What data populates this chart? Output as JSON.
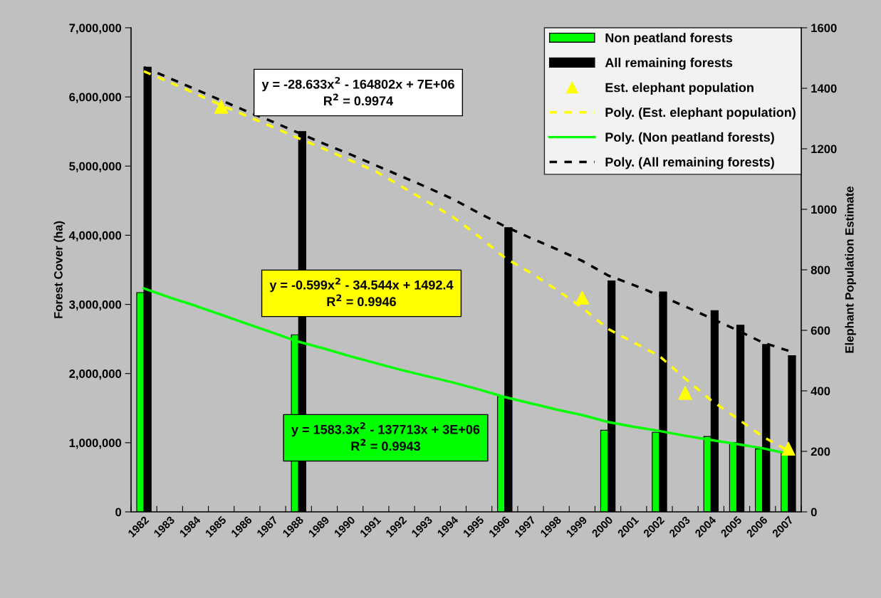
{
  "chart_data": {
    "type": "bar",
    "categories": [
      "1982",
      "1983",
      "1984",
      "1985",
      "1986",
      "1987",
      "1988",
      "1989",
      "1990",
      "1991",
      "1992",
      "1993",
      "1994",
      "1995",
      "1996",
      "1997",
      "1998",
      "1999",
      "2000",
      "2001",
      "2002",
      "2003",
      "2004",
      "2005",
      "2006",
      "2007"
    ],
    "ylabel": "Forest Cover (ha)",
    "y2label": "Elephant Population Estimate",
    "series": [
      {
        "name": "Non peatland forests",
        "color": "#00ff00",
        "values": [
          3170000,
          null,
          null,
          null,
          null,
          null,
          2560000,
          null,
          null,
          null,
          null,
          null,
          null,
          null,
          1670000,
          null,
          null,
          null,
          1180000,
          null,
          1150000,
          null,
          1090000,
          1000000,
          910000,
          840000
        ]
      },
      {
        "name": "All remaining forests",
        "color": "#000000",
        "values": [
          6430000,
          null,
          null,
          null,
          null,
          null,
          5500000,
          null,
          null,
          null,
          null,
          null,
          null,
          null,
          4110000,
          null,
          null,
          null,
          3340000,
          null,
          3180000,
          null,
          2910000,
          2700000,
          2420000,
          2260000
        ]
      },
      {
        "name": "Est. elephant population",
        "type": "scatter",
        "axis": "y2",
        "color": "#ffff00",
        "marker": "triangle",
        "values": [
          null,
          null,
          null,
          1339,
          null,
          null,
          null,
          null,
          null,
          null,
          null,
          null,
          null,
          null,
          null,
          null,
          null,
          708,
          null,
          null,
          null,
          393,
          null,
          null,
          null,
          209
        ]
      },
      {
        "name": "Poly. (Est. elephant population)",
        "type": "line",
        "axis": "y2",
        "color": "#ffff00",
        "line_style": "dashed",
        "values": [
          1456,
          1420,
          1382,
          1344,
          1308,
          1272,
          1235,
          1199,
          1162,
          1125,
          1075,
          1025,
          974,
          910,
          840,
          790,
          735,
          675,
          605,
          560,
          515,
          440,
          369,
          310,
          249,
          202
        ]
      },
      {
        "name": "Poly. (Non peatland forests)",
        "type": "line",
        "color": "#00ff00",
        "line_style": "solid",
        "values": [
          3230000,
          3100000,
          2980000,
          2850000,
          2720000,
          2590000,
          2460000,
          2360000,
          2250000,
          2150000,
          2050000,
          1960000,
          1870000,
          1770000,
          1660000,
          1570000,
          1480000,
          1400000,
          1300000,
          1230000,
          1170000,
          1100000,
          1040000,
          980000,
          920000,
          840000
        ]
      },
      {
        "name": "Poly. (All remaining forests)",
        "type": "line",
        "color": "#000000",
        "line_style": "dashed",
        "values": [
          6430000,
          6270000,
          6110000,
          5950000,
          5790000,
          5640000,
          5480000,
          5320000,
          5170000,
          5010000,
          4850000,
          4690000,
          4520000,
          4320000,
          4130000,
          3960000,
          3800000,
          3630000,
          3420000,
          3280000,
          3130000,
          2970000,
          2800000,
          2630000,
          2450000,
          2330000
        ]
      }
    ],
    "ylim": [
      0,
      7000000
    ],
    "yticks": [
      0,
      {
        "value": 1000000,
        "label": "1,000,000"
      },
      {
        "value": 2000000,
        "label": "2,000,000"
      },
      {
        "value": 3000000,
        "label": "3,000,000"
      },
      {
        "value": 4000000,
        "label": "4,000,000"
      },
      {
        "value": 5000000,
        "label": "5,000,000"
      },
      {
        "value": 6000000,
        "label": "6,000,000"
      },
      {
        "value": 7000000,
        "label": "7,000,000"
      }
    ],
    "y2lim": [
      0,
      1600
    ],
    "y2ticks": [
      0,
      200,
      400,
      600,
      800,
      1000,
      1200,
      1400,
      1600
    ],
    "annotations": [
      "y = -28.633x$^{2}$ - 164802x + 7E+06\nR$^{2}$ = 0.9974",
      "y = -0.599x$^{2}$ - 34.544x + 1492.4\nR$^{2}$ = 0.9946",
      "y = 1583.3x$^{2}$ - 137713x + 3E+06\nR$^{2}$ = 0.9943"
    ],
    "legend": "top right",
    "grid": false
  }
}
